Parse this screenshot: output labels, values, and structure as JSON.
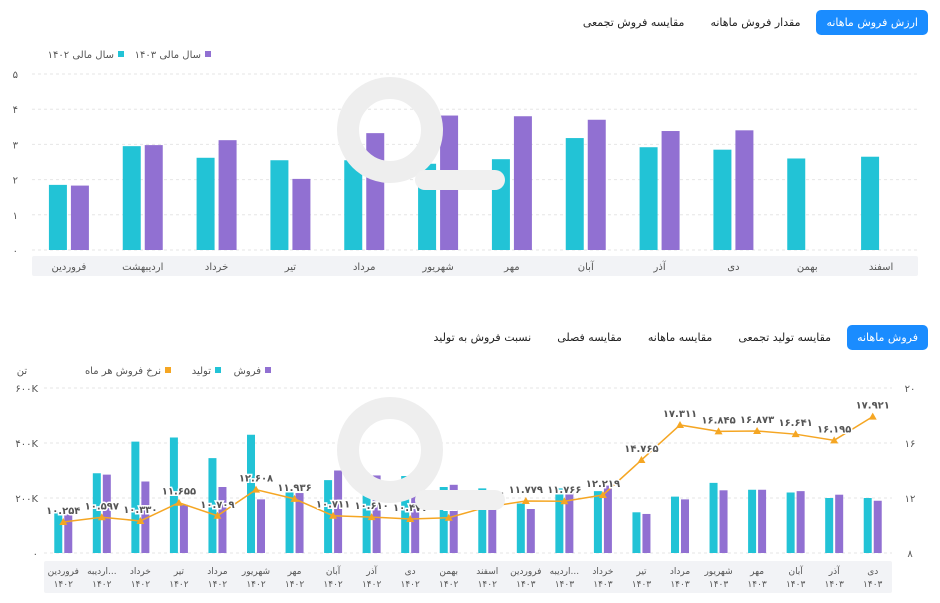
{
  "top_tabs": [
    {
      "label": "ارزش فروش ماهانه",
      "active": true
    },
    {
      "label": "مقدار فروش ماهانه",
      "active": false
    },
    {
      "label": "مقایسه فروش تجمعی",
      "active": false
    }
  ],
  "bottom_tabs": [
    {
      "label": "فروش ماهانه",
      "active": true
    },
    {
      "label": "مقایسه تولید تجمعی",
      "active": false
    },
    {
      "label": "مقایسه ماهانه",
      "active": false
    },
    {
      "label": "مقایسه فصلی",
      "active": false
    },
    {
      "label": "نسبت فروش به تولید",
      "active": false
    }
  ],
  "colors": {
    "teal": "#22c3d6",
    "purple": "#9170d2",
    "orange": "#f5a623",
    "tab_active": "#1a8cff",
    "grid": "#e6e6e6"
  },
  "chart_data": [
    {
      "type": "bar",
      "categories": [
        "فروردین",
        "اردیبهشت",
        "خرداد",
        "تیر",
        "مرداد",
        "شهریور",
        "مهر",
        "آبان",
        "آذر",
        "دی",
        "بهمن",
        "اسفند"
      ],
      "series": [
        {
          "name": "سال مالی ۱۴۰۲",
          "color": "#22c3d6",
          "values": [
            1.85,
            2.95,
            2.62,
            2.55,
            2.55,
            2.45,
            2.58,
            3.18,
            2.92,
            2.85,
            2.6,
            2.65
          ]
        },
        {
          "name": "سال مالی ۱۴۰۳",
          "color": "#9170d2",
          "values": [
            1.83,
            2.98,
            3.12,
            2.02,
            3.32,
            3.82,
            3.8,
            3.7,
            3.38,
            3.4,
            null,
            null
          ]
        }
      ],
      "yticks": [
        "۵",
        "۴",
        "۳",
        "۲",
        "۱",
        "۰"
      ],
      "ylim": [
        0,
        5
      ]
    },
    {
      "type": "bar",
      "left_axis_unit": "تن",
      "legend": [
        {
          "name": "فروش",
          "color": "#9170d2"
        },
        {
          "name": "تولید",
          "color": "#22c3d6"
        },
        {
          "name": "نرخ فروش هر ماه",
          "color": "#f5a623"
        }
      ],
      "categories": [
        [
          "فروردین",
          "۱۴۰۲"
        ],
        [
          "اردیبه...",
          "۱۴۰۲"
        ],
        [
          "خرداد",
          "۱۴۰۲"
        ],
        [
          "تیر",
          "۱۴۰۲"
        ],
        [
          "مرداد",
          "۱۴۰۲"
        ],
        [
          "شهریور",
          "۱۴۰۲"
        ],
        [
          "مهر",
          "۱۴۰۲"
        ],
        [
          "آبان",
          "۱۴۰۲"
        ],
        [
          "آذر",
          "۱۴۰۲"
        ],
        [
          "دی",
          "۱۴۰۲"
        ],
        [
          "بهمن",
          "۱۴۰۲"
        ],
        [
          "اسفند",
          "۱۴۰۲"
        ],
        [
          "فروردین",
          "۱۴۰۳"
        ],
        [
          "اردیبه...",
          "۱۴۰۳"
        ],
        [
          "خرداد",
          "۱۴۰۳"
        ],
        [
          "تیر",
          "۱۴۰۳"
        ],
        [
          "مرداد",
          "۱۴۰۳"
        ],
        [
          "شهریور",
          "۱۴۰۳"
        ],
        [
          "مهر",
          "۱۴۰۳"
        ],
        [
          "آبان",
          "۱۴۰۳"
        ],
        [
          "آذر",
          "۱۴۰۳"
        ],
        [
          "دی",
          "۱۴۰۳"
        ]
      ],
      "production": [
        150000,
        290000,
        405000,
        420000,
        345000,
        430000,
        220000,
        265000,
        285000,
        280000,
        240000,
        235000,
        180000,
        235000,
        225000,
        148000,
        205000,
        255000,
        230000,
        220000,
        200000,
        200000
      ],
      "sales": [
        140000,
        285000,
        260000,
        175000,
        240000,
        195000,
        218000,
        300000,
        282000,
        280000,
        248000,
        225000,
        160000,
        225000,
        245000,
        142000,
        195000,
        228000,
        230000,
        225000,
        212000,
        190000
      ],
      "sales_rate": [
        10.254,
        10.597,
        10.33,
        11.655,
        10.709,
        12.608,
        11.936,
        10.711,
        10.61,
        10.477,
        10.566,
        11.356,
        11.779,
        11.766,
        12.219,
        14.765,
        17.311,
        16.845,
        16.873,
        16.641,
        16.195,
        17.921
      ],
      "sales_rate_labels": [
        "۱۰.۲۵۴",
        "۱۰.۵۹۷",
        "۱۰.۳۳۰",
        "۱۱.۶۵۵",
        "۱۰.۷۰۹",
        "۱۲.۶۰۸",
        "۱۱.۹۳۶",
        "۱۰.۷۱۱",
        "۱۰.۶۱۰",
        "۱۰.۴۷۷",
        "۱۰.۵۶۶",
        "۱۱.۳۵۶",
        "۱۱.۷۷۹",
        "۱۱.۷۶۶",
        "۱۲.۲۱۹",
        "۱۴.۷۶۵",
        "۱۷.۳۱۱",
        "۱۶.۸۴۵",
        "۱۶.۸۷۳",
        "۱۶.۶۴۱",
        "۱۶.۱۹۵",
        "۱۷.۹۲۱"
      ],
      "left_yticks": [
        "۶۰۰K",
        "۴۰۰K",
        "۲۰۰K",
        "۰"
      ],
      "right_yticks": [
        "۲۰",
        "۱۶",
        "۱۲",
        "۸"
      ],
      "left_ylim": [
        0,
        600000
      ],
      "right_ylim": [
        8,
        20
      ]
    }
  ]
}
